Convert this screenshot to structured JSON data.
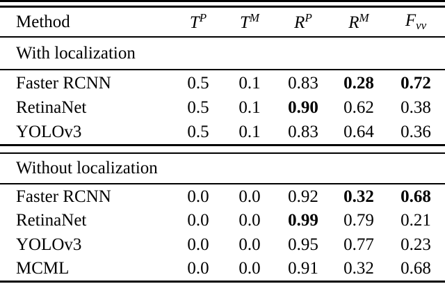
{
  "table": {
    "colors": {
      "text": "#000000",
      "rule": "#000000",
      "background": "#ffffff"
    },
    "columns": [
      {
        "label": "Method"
      },
      {
        "base": "T",
        "sup": "P"
      },
      {
        "base": "T",
        "sup": "M"
      },
      {
        "base": "R",
        "sup": "P"
      },
      {
        "base": "R",
        "sup": "M"
      },
      {
        "base": "F",
        "sub": "vv"
      }
    ],
    "sections": [
      {
        "label": "With localization",
        "rows": [
          {
            "method": "Faster RCNN",
            "values": [
              "0.5",
              "0.1",
              "0.83",
              "0.28",
              "0.72"
            ],
            "bold": [
              false,
              false,
              false,
              true,
              true
            ]
          },
          {
            "method": "RetinaNet",
            "values": [
              "0.5",
              "0.1",
              "0.90",
              "0.62",
              "0.38"
            ],
            "bold": [
              false,
              false,
              true,
              false,
              false
            ]
          },
          {
            "method": "YOLOv3",
            "values": [
              "0.5",
              "0.1",
              "0.83",
              "0.64",
              "0.36"
            ],
            "bold": [
              false,
              false,
              false,
              false,
              false
            ]
          }
        ]
      },
      {
        "label": "Without localization",
        "rows": [
          {
            "method": "Faster RCNN",
            "values": [
              "0.0",
              "0.0",
              "0.92",
              "0.32",
              "0.68"
            ],
            "bold": [
              false,
              false,
              false,
              true,
              true
            ]
          },
          {
            "method": "RetinaNet",
            "values": [
              "0.0",
              "0.0",
              "0.99",
              "0.79",
              "0.21"
            ],
            "bold": [
              false,
              false,
              true,
              false,
              false
            ]
          },
          {
            "method": "YOLOv3",
            "values": [
              "0.0",
              "0.0",
              "0.95",
              "0.77",
              "0.23"
            ],
            "bold": [
              false,
              false,
              false,
              false,
              false
            ]
          },
          {
            "method": "MCML",
            "values": [
              "0.0",
              "0.0",
              "0.91",
              "0.32",
              "0.68"
            ],
            "bold": [
              false,
              false,
              false,
              false,
              false
            ]
          }
        ]
      }
    ]
  }
}
